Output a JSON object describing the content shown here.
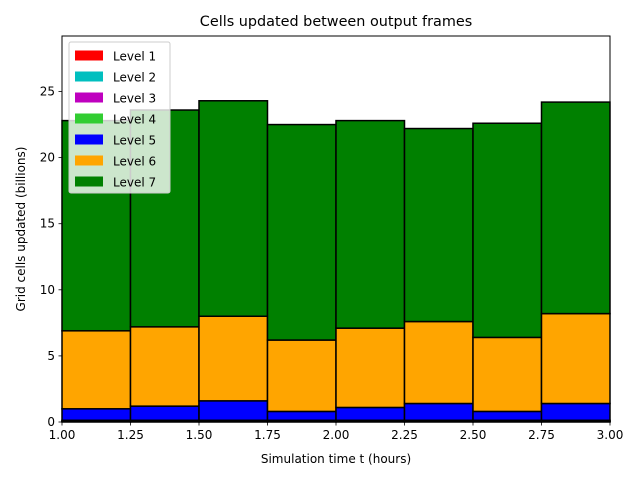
{
  "chart_data": {
    "type": "bar",
    "title": "Cells updated between output frames",
    "xlabel": "Simulation time t (hours)",
    "ylabel": "Grid cells updated (billions)",
    "xlim": [
      1.0,
      3.0
    ],
    "ylim": [
      0,
      29.2
    ],
    "xticks": [
      "1.00",
      "1.25",
      "1.50",
      "1.75",
      "2.00",
      "2.25",
      "2.50",
      "2.75",
      "3.00"
    ],
    "xtick_values": [
      1.0,
      1.25,
      1.5,
      1.75,
      2.0,
      2.25,
      2.5,
      2.75,
      3.0
    ],
    "yticks": [
      "0",
      "5",
      "10",
      "15",
      "20",
      "25"
    ],
    "ytick_values": [
      0,
      5,
      10,
      15,
      20,
      25
    ],
    "bin_edges": [
      1.0,
      1.25,
      1.5,
      1.75,
      2.0,
      2.25,
      2.5,
      2.75,
      3.0
    ],
    "stacked": true,
    "grid": false,
    "legend_position": "top-left",
    "series": [
      {
        "name": "Level 1",
        "color": "#ff0000",
        "values": [
          0.02,
          0.02,
          0.02,
          0.02,
          0.02,
          0.02,
          0.02,
          0.02
        ]
      },
      {
        "name": "Level 2",
        "color": "#00bfbf",
        "values": [
          0.03,
          0.03,
          0.03,
          0.03,
          0.03,
          0.03,
          0.03,
          0.03
        ]
      },
      {
        "name": "Level 3",
        "color": "#bf00bf",
        "values": [
          0.03,
          0.03,
          0.03,
          0.03,
          0.03,
          0.03,
          0.03,
          0.03
        ]
      },
      {
        "name": "Level 4",
        "color": "#32cd32",
        "values": [
          0.05,
          0.05,
          0.05,
          0.05,
          0.05,
          0.05,
          0.05,
          0.05
        ]
      },
      {
        "name": "Level 5",
        "color": "#0000ff",
        "values": [
          0.87,
          1.07,
          1.47,
          0.67,
          0.97,
          1.27,
          0.67,
          1.27
        ]
      },
      {
        "name": "Level 6",
        "color": "#ffa500",
        "values": [
          5.9,
          6.0,
          6.4,
          5.4,
          6.0,
          6.2,
          5.6,
          6.8
        ]
      },
      {
        "name": "Level 7",
        "color": "#008000",
        "values": [
          15.9,
          16.4,
          16.3,
          16.3,
          15.7,
          14.6,
          16.2,
          16.0
        ]
      }
    ]
  }
}
